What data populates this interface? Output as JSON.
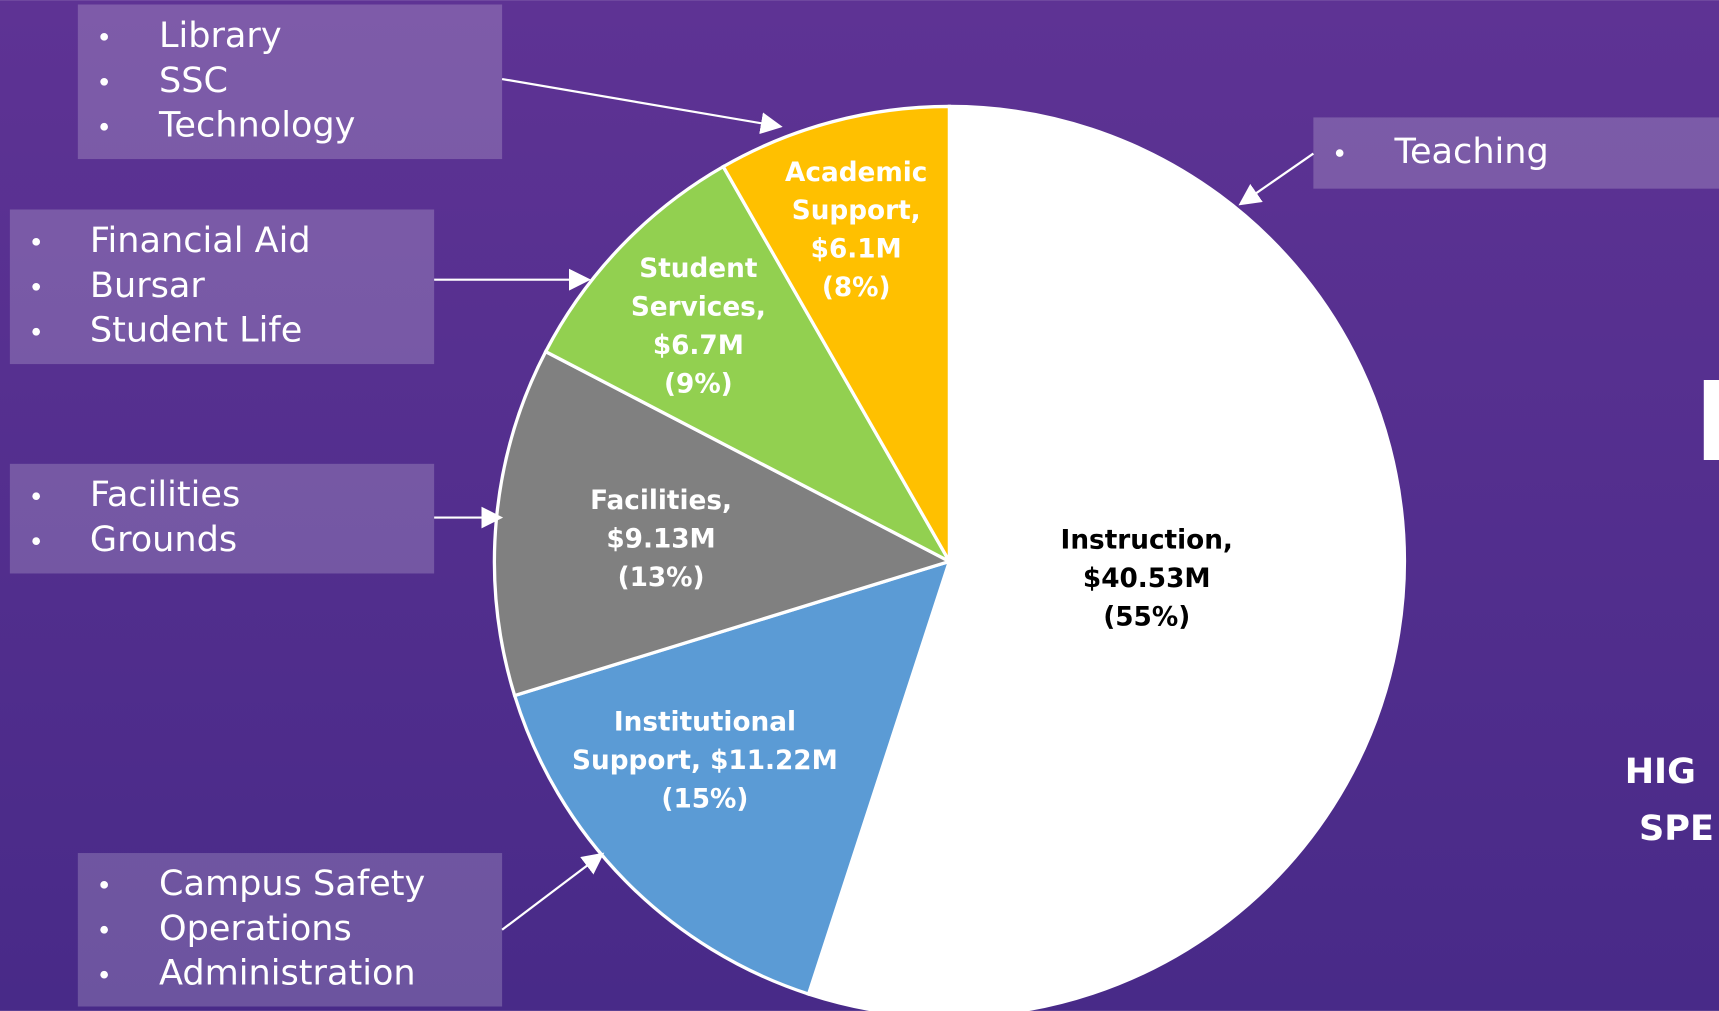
{
  "chart_data": {
    "type": "pie",
    "values": [
      40.53,
      11.22,
      9.13,
      6.7,
      6.1
    ],
    "value_labels": [
      "Instruction, $40.53M (55%)",
      "Institutional Support, $11.22M (15%)",
      "Facilities, $9.13M (13%)",
      "Student Services, $6.7M (9%)",
      "Academic Support, $6.1M (8%)"
    ],
    "colors": [
      "#ffffff",
      "#5b9bd5",
      "#808080",
      "#92d050",
      "#ffc000"
    ],
    "annotations": [
      {
        "items": [
          "Teaching"
        ]
      },
      {
        "items": [
          "Campus Safety",
          "Operations",
          "Administration"
        ]
      },
      {
        "items": [
          "Facilities",
          "Grounds"
        ]
      },
      {
        "items": [
          "Financial Aid",
          "Bursar",
          "Student Life"
        ]
      },
      {
        "items": [
          "Library",
          "SSC",
          "Technology"
        ]
      }
    ],
    "fragments": [
      "N",
      "HIG",
      "SPE"
    ]
  }
}
